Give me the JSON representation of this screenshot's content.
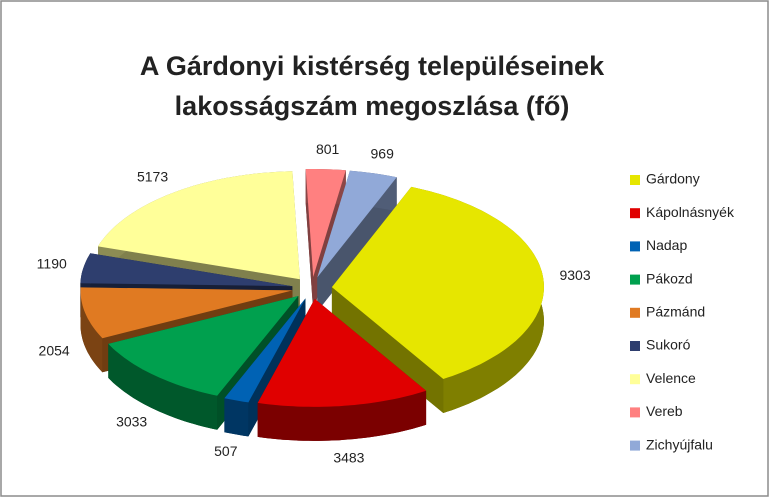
{
  "chart_data": {
    "type": "pie",
    "title": "A Gárdonyi kistérség településeinek lakosságszám megoszlása (fő)",
    "categories": [
      "Gárdony",
      "Kápolnásnyék",
      "Nadap",
      "Pákozd",
      "Pázmánd",
      "Sukoró",
      "Velence",
      "Vereb",
      "Zichyújfalu"
    ],
    "values": [
      9303,
      3483,
      507,
      3033,
      2054,
      1190,
      5173,
      801,
      969
    ],
    "colors": [
      "#e6e600",
      "#e00000",
      "#0062b4",
      "#00a04e",
      "#e07a22",
      "#2e3e6e",
      "#ffff99",
      "#ff8080",
      "#91a9d8"
    ],
    "legend": "right"
  }
}
